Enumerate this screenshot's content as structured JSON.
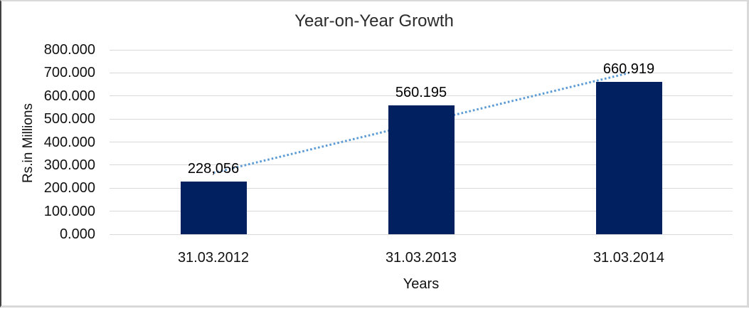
{
  "chart_data": {
    "type": "bar",
    "title": "Year-on-Year Growth",
    "xlabel": "Years",
    "ylabel": "Rs.in Millions",
    "categories": [
      "31.03.2012",
      "31.03.2013",
      "31.03.2014"
    ],
    "values": [
      228.056,
      560.195,
      660.919
    ],
    "value_labels": [
      "228,056",
      "560.195",
      "660.919"
    ],
    "ylim": [
      0,
      800
    ],
    "ytick_step": 100,
    "ytick_labels": [
      "0.000",
      "100.000",
      "200.000",
      "300.000",
      "400.000",
      "500.000",
      "600.000",
      "700.000",
      "800.000"
    ],
    "grid": true,
    "legend": "none",
    "bar_color": "#002060",
    "grid_color": "#d9d9d9",
    "trendline": {
      "type": "linear",
      "style": "dotted",
      "color": "#5b9bd5",
      "values": [
        266.6,
        483.06,
        699.5
      ]
    }
  }
}
